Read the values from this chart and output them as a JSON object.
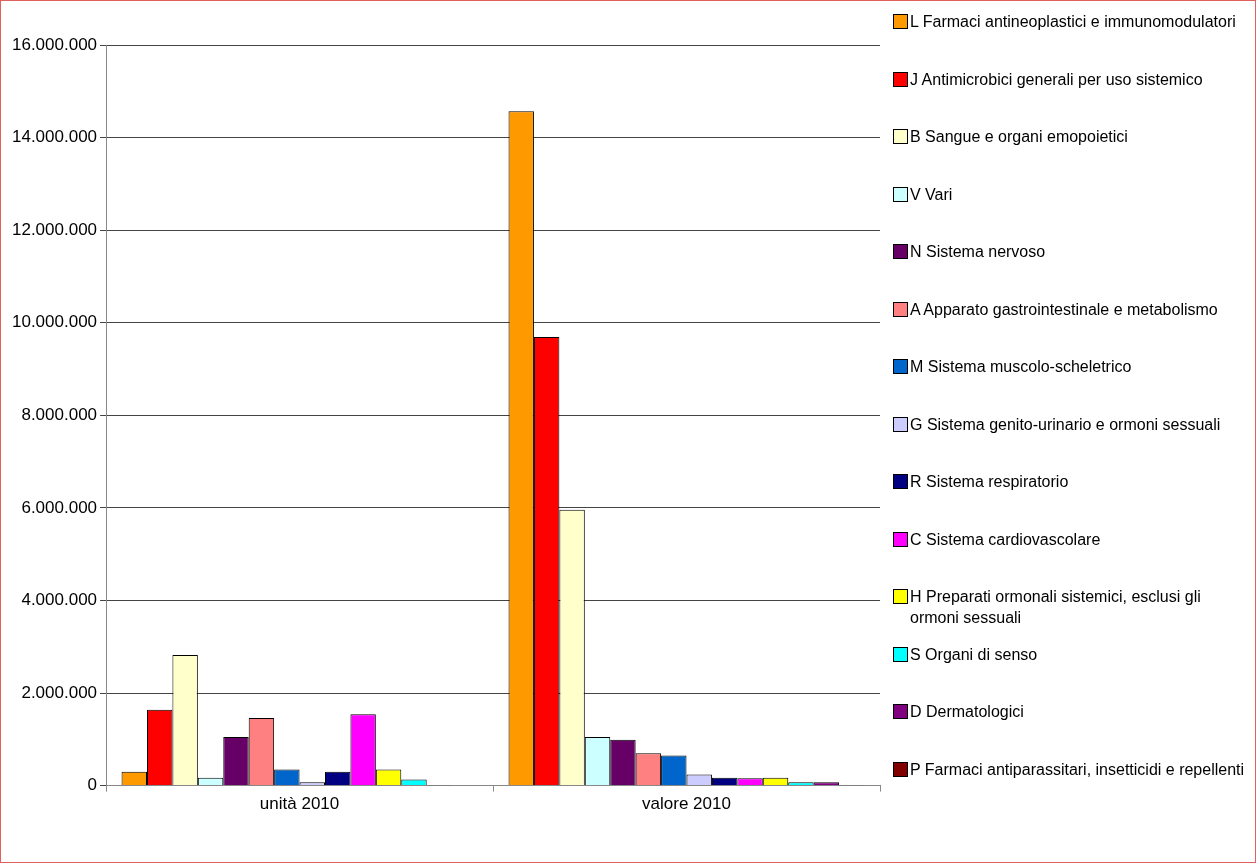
{
  "chart_data": {
    "type": "bar",
    "categories": [
      "unità 2010",
      "valore 2010"
    ],
    "series": [
      {
        "name": "L Farmaci antineoplastici e immunomodulatori",
        "color": "#ff9900",
        "values": [
          300000,
          14570000
        ]
      },
      {
        "name": "J Antimicrobici generali per uso sistemico",
        "color": "#ff0000",
        "values": [
          1640000,
          9690000
        ]
      },
      {
        "name": "B Sangue e organi emopoietici",
        "color": "#ffffcc",
        "values": [
          2820000,
          5960000
        ]
      },
      {
        "name": "V Vari",
        "color": "#ccffff",
        "values": [
          170000,
          1050000
        ]
      },
      {
        "name": "N Sistema nervoso",
        "color": "#660066",
        "values": [
          1050000,
          990000
        ]
      },
      {
        "name": "A Apparato gastrointestinale e metabolismo",
        "color": "#ff8080",
        "values": [
          1460000,
          700000
        ]
      },
      {
        "name": "M Sistema muscolo-scheletrico",
        "color": "#0066cc",
        "values": [
          350000,
          650000
        ]
      },
      {
        "name": "G Sistema genito-urinario e ormoni sessuali",
        "color": "#ccccff",
        "values": [
          70000,
          240000
        ]
      },
      {
        "name": "R Sistema respiratorio",
        "color": "#000080",
        "values": [
          300000,
          170000
        ]
      },
      {
        "name": "C Sistema cardiovascolare",
        "color": "#ff00ff",
        "values": [
          1540000,
          160000
        ]
      },
      {
        "name": "H Preparati ormonali sistemici, esclusi gli ormoni sessuali",
        "color": "#ffff00",
        "values": [
          350000,
          170000
        ]
      },
      {
        "name": "S Organi di senso",
        "color": "#00ffff",
        "values": [
          130000,
          70000
        ]
      },
      {
        "name": "D Dermatologici",
        "color": "#800080",
        "values": [
          10000,
          70000
        ]
      },
      {
        "name": "P Farmaci antiparassitari, insetticidi e repellenti",
        "color": "#800000",
        "values": [
          0,
          10000
        ]
      }
    ],
    "ylim": [
      0,
      16000000
    ],
    "yticks": [
      {
        "value": 0,
        "label": "0"
      },
      {
        "value": 2000000,
        "label": "2.000.000"
      },
      {
        "value": 4000000,
        "label": "4.000.000"
      },
      {
        "value": 6000000,
        "label": "6.000.000"
      },
      {
        "value": 8000000,
        "label": "8.000.000"
      },
      {
        "value": 10000000,
        "label": "10.000.000"
      },
      {
        "value": 12000000,
        "label": "12.000.000"
      },
      {
        "value": 14000000,
        "label": "14.000.000"
      },
      {
        "value": 16000000,
        "label": "16.000.000"
      }
    ],
    "grid": "y",
    "legend": "right"
  }
}
